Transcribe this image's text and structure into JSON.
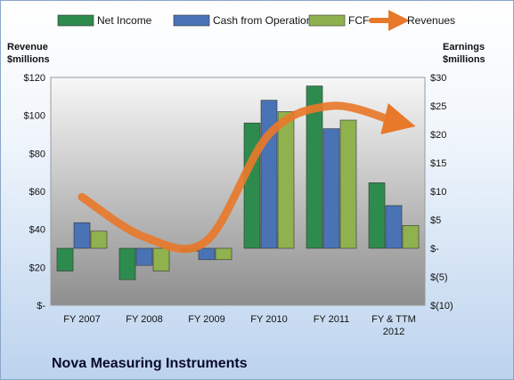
{
  "chart_data": {
    "type": "bar",
    "title": "Nova Measuring Instruments",
    "categories": [
      "FY 2007",
      "FY 2008",
      "FY 2009",
      "FY 2010",
      "FY 2011",
      "FY & TTM 2012"
    ],
    "left_axis": {
      "title_lines": [
        "Revenue",
        "$millions"
      ],
      "ylim": [
        0,
        120
      ],
      "ticks": [
        0,
        20,
        40,
        60,
        80,
        100,
        120
      ],
      "tick_labels": [
        "$-",
        "$20",
        "$40",
        "$60",
        "$80",
        "$100",
        "$120"
      ]
    },
    "right_axis": {
      "title_lines": [
        "Earnings",
        "$millions"
      ],
      "ylim": [
        -10,
        30
      ],
      "ticks": [
        -10,
        -5,
        0,
        5,
        10,
        15,
        20,
        25,
        30
      ],
      "tick_labels": [
        "$(10)",
        "$(5)",
        "$-",
        "$5",
        "$10",
        "$15",
        "$20",
        "$25",
        "$30"
      ]
    },
    "series": [
      {
        "name": "Net Income",
        "axis": "right",
        "kind": "bar",
        "color": "#2e8b4e",
        "values": [
          -4,
          -5.5,
          -0.5,
          22,
          28.5,
          11.5
        ]
      },
      {
        "name": "Cash from Operations",
        "axis": "right",
        "kind": "bar",
        "color": "#4a73b5",
        "values": [
          4.5,
          -3,
          -2,
          26,
          21,
          7.5
        ]
      },
      {
        "name": "FCF",
        "axis": "right",
        "kind": "bar",
        "color": "#8fb24e",
        "values": [
          3,
          -4,
          -2,
          24,
          22.5,
          4
        ]
      },
      {
        "name": "Revenues",
        "axis": "left",
        "kind": "line",
        "color": "#e8782a",
        "values": [
          57,
          36,
          34,
          90,
          105,
          97
        ]
      }
    ],
    "legend_position": "top"
  }
}
